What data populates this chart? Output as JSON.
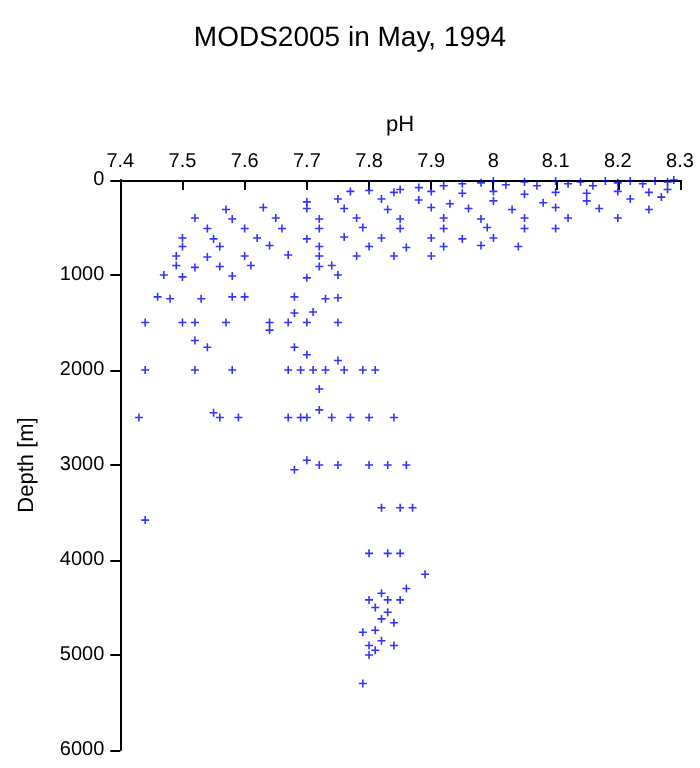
{
  "chart_data": {
    "type": "scatter",
    "title": "MODS2005 in May, 1994",
    "xlabel": "pH",
    "ylabel": "Depth [m]",
    "xlim": [
      7.4,
      8.3
    ],
    "xticks": [
      7.4,
      7.5,
      7.6,
      7.7,
      7.8,
      7.9,
      8,
      8.1,
      8.2,
      8.3
    ],
    "ylim": [
      6000,
      0
    ],
    "yticks": [
      0,
      1000,
      2000,
      3000,
      4000,
      5000,
      6000
    ],
    "marker": "cross",
    "series": [
      {
        "color": "#0000ff",
        "x": [
          7.92,
          7.95,
          7.98,
          8.0,
          8.02,
          8.05,
          8.07,
          8.1,
          8.12,
          8.14,
          8.16,
          8.18,
          8.2,
          8.22,
          8.24,
          8.26,
          8.28,
          8.29,
          7.88,
          7.85,
          7.77,
          7.8,
          7.84,
          7.9,
          7.95,
          8.0,
          8.05,
          8.1,
          8.15,
          8.2,
          8.25,
          8.28,
          7.7,
          7.75,
          7.82,
          7.88,
          7.93,
          8.0,
          8.08,
          8.15,
          8.22,
          8.27,
          7.57,
          7.63,
          7.7,
          7.76,
          7.83,
          7.9,
          7.96,
          8.03,
          8.1,
          8.17,
          8.25,
          7.52,
          7.58,
          7.65,
          7.72,
          7.78,
          7.85,
          7.92,
          7.98,
          8.05,
          8.12,
          8.2,
          7.54,
          7.6,
          7.66,
          7.72,
          7.79,
          7.85,
          7.92,
          7.99,
          8.05,
          8.1,
          7.5,
          7.55,
          7.62,
          7.7,
          7.76,
          7.82,
          7.9,
          7.95,
          8.0,
          7.5,
          7.56,
          7.64,
          7.72,
          7.8,
          7.86,
          7.92,
          7.98,
          8.04,
          7.49,
          7.54,
          7.6,
          7.67,
          7.72,
          7.78,
          7.84,
          7.9,
          7.49,
          7.52,
          7.56,
          7.61,
          7.72,
          7.74,
          7.47,
          7.5,
          7.58,
          7.7,
          7.75,
          7.46,
          7.48,
          7.53,
          7.58,
          7.6,
          7.68,
          7.73,
          7.75,
          7.68,
          7.71,
          7.44,
          7.5,
          7.52,
          7.57,
          7.64,
          7.67,
          7.7,
          7.75,
          7.52,
          7.54,
          7.64,
          7.68,
          7.7,
          7.75,
          7.44,
          7.52,
          7.58,
          7.67,
          7.69,
          7.71,
          7.73,
          7.76,
          7.79,
          7.81,
          7.72,
          7.72,
          7.43,
          7.55,
          7.56,
          7.59,
          7.67,
          7.69,
          7.7,
          7.74,
          7.77,
          7.8,
          7.84,
          7.7,
          7.68,
          7.72,
          7.75,
          7.8,
          7.83,
          7.86,
          7.44,
          7.82,
          7.85,
          7.87,
          7.8,
          7.83,
          7.85,
          7.89,
          7.86,
          7.82,
          7.8,
          7.83,
          7.85,
          7.81,
          7.83,
          7.82,
          7.84,
          7.79,
          7.81,
          7.82,
          7.8,
          7.84,
          7.81,
          7.8,
          7.79
        ],
        "values": [
          60,
          40,
          30,
          10,
          50,
          20,
          60,
          10,
          40,
          20,
          60,
          10,
          30,
          10,
          40,
          10,
          20,
          0,
          80,
          100,
          120,
          110,
          130,
          120,
          140,
          120,
          150,
          130,
          140,
          120,
          130,
          100,
          230,
          200,
          200,
          210,
          250,
          220,
          240,
          220,
          200,
          180,
          310,
          290,
          300,
          300,
          310,
          290,
          300,
          310,
          290,
          300,
          310,
          400,
          410,
          400,
          410,
          400,
          410,
          400,
          410,
          400,
          400,
          400,
          510,
          510,
          510,
          510,
          500,
          510,
          510,
          500,
          510,
          510,
          610,
          620,
          610,
          620,
          600,
          610,
          610,
          620,
          610,
          700,
          700,
          690,
          700,
          700,
          710,
          700,
          690,
          700,
          800,
          810,
          800,
          790,
          800,
          800,
          800,
          800,
          900,
          920,
          910,
          900,
          910,
          900,
          1000,
          1020,
          1010,
          1030,
          1000,
          1230,
          1250,
          1250,
          1230,
          1230,
          1230,
          1250,
          1240,
          1400,
          1390,
          1500,
          1500,
          1500,
          1500,
          1500,
          1500,
          1500,
          1500,
          1690,
          1760,
          1580,
          1760,
          1840,
          1900,
          2000,
          2000,
          2000,
          2000,
          2000,
          2000,
          2000,
          2000,
          2000,
          2000,
          2200,
          2420,
          2500,
          2450,
          2500,
          2500,
          2500,
          2500,
          2500,
          2500,
          2500,
          2500,
          2500,
          2950,
          3050,
          3000,
          3000,
          3000,
          3000,
          3000,
          3580,
          3450,
          3450,
          3450,
          3930,
          3930,
          3930,
          4150,
          4300,
          4350,
          4420,
          4420,
          4420,
          4500,
          4550,
          4620,
          4660,
          4760,
          4740,
          4850,
          4900,
          4900,
          4950,
          5000,
          5300
        ]
      }
    ]
  }
}
